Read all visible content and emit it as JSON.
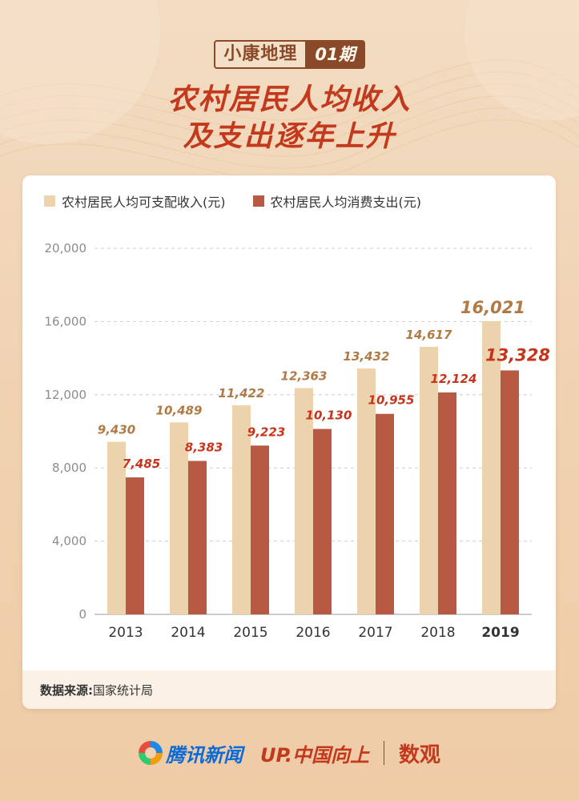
{
  "header": {
    "tag_left": "小康地理",
    "tag_right": "01期",
    "title_line1": "农村居民人均收入",
    "title_line2": "及支出逐年上升"
  },
  "colors": {
    "income": "#ecd3ad",
    "expense": "#b85a43",
    "income_label": "#b07a45",
    "expense_label": "#c7341b",
    "title": "#c2391d"
  },
  "source": {
    "label": "数据来源:",
    "value": "国家统计局"
  },
  "footer": {
    "logo1": "腾讯新闻",
    "logo2": "UP.中国向上",
    "logo3": "数观"
  },
  "chart_data": {
    "type": "bar",
    "categories": [
      "2013",
      "2014",
      "2015",
      "2016",
      "2017",
      "2018",
      "2019"
    ],
    "series": [
      {
        "name": "农村居民人均可支配收入(元)",
        "values": [
          9430,
          10489,
          11422,
          12363,
          13432,
          14617,
          16021
        ],
        "labels": [
          "9,430",
          "10,489",
          "11,422",
          "12,363",
          "13,432",
          "14,617",
          "16,021"
        ]
      },
      {
        "name": "农村居民人均消费支出(元)",
        "values": [
          7485,
          8383,
          9223,
          10130,
          10955,
          12124,
          13328
        ],
        "labels": [
          "7,485",
          "8,383",
          "9,223",
          "10,130",
          "10,955",
          "12,124",
          "13,328"
        ]
      }
    ],
    "ylim": [
      0,
      20000
    ],
    "yticks": [
      0,
      4000,
      8000,
      12000,
      16000,
      20000
    ],
    "ytick_labels": [
      "0",
      "4,000",
      "8,000",
      "12,000",
      "16,000",
      "20,000"
    ],
    "grid": true,
    "legend": "top-left"
  }
}
